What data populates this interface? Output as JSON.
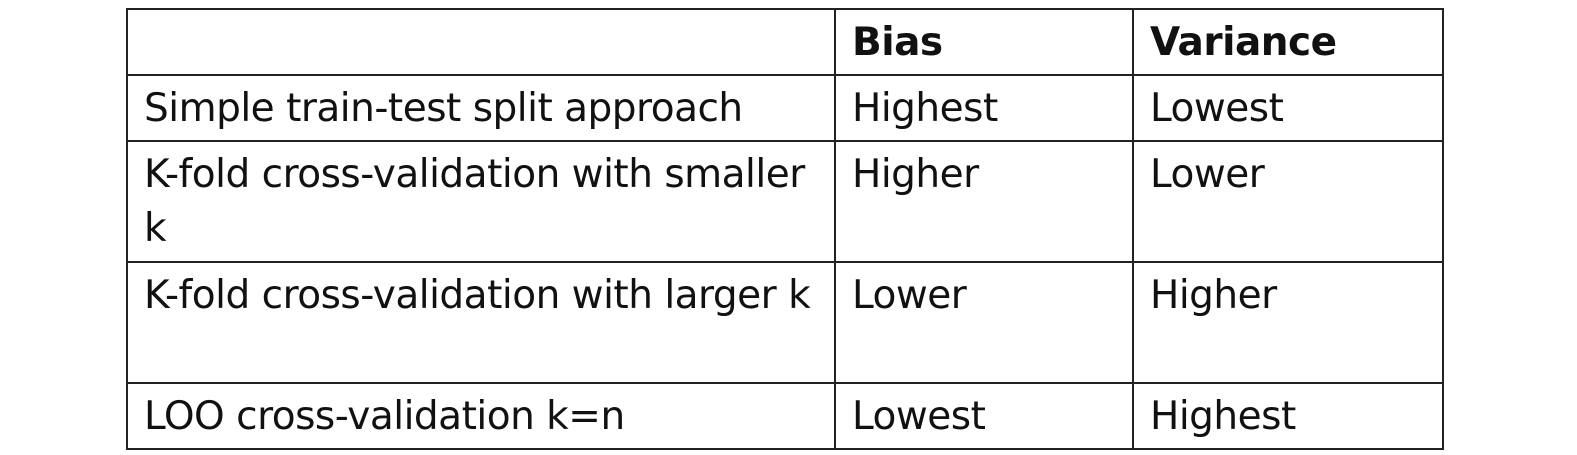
{
  "table": {
    "headers": [
      "",
      "Bias",
      "Variance"
    ],
    "rows": [
      {
        "method": "Simple train-test split approach",
        "bias": "Highest",
        "variance": "Lowest"
      },
      {
        "method": "K-fold cross-validation with smaller k",
        "bias": "Higher",
        "variance": "Lower"
      },
      {
        "method": "K-fold cross-validation with larger k",
        "bias": "Lower",
        "variance": "Higher"
      },
      {
        "method": "LOO cross-validation k=n",
        "bias": "Lowest",
        "variance": "Highest"
      }
    ]
  }
}
